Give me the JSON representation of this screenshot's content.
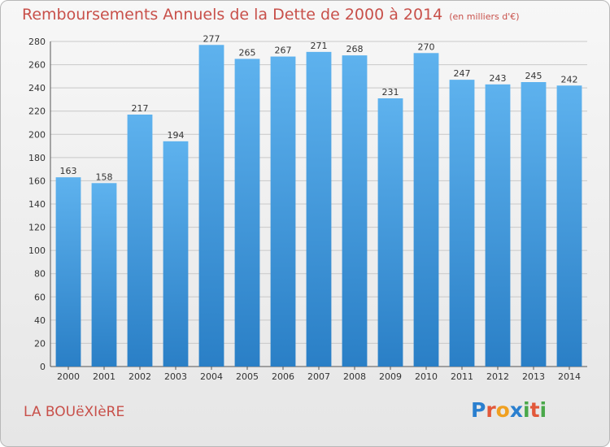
{
  "header": {
    "title": "Remboursements Annuels de la Dette de 2000 à 2014",
    "unit": "(en milliers d'€)"
  },
  "footer": {
    "town": "LA BOUëXIèRE",
    "logo_letters": [
      "P",
      "r",
      "o",
      "x",
      "i",
      "t",
      "i"
    ],
    "logo_colors": [
      "#2a7fcf",
      "#e2583a",
      "#f0a020",
      "#2a7fcf",
      "#4aa84a",
      "#e2583a",
      "#4aa84a"
    ]
  },
  "colors": {
    "bar_light": "#5eb2ee",
    "bar_dark": "#2a7fc6",
    "grid": "#c8c8c8",
    "title": "#c8504a"
  },
  "chart_data": {
    "type": "bar",
    "title": "Remboursements Annuels de la Dette de 2000 à 2014",
    "subtitle": "(en milliers d'€)",
    "categories": [
      "2000",
      "2001",
      "2002",
      "2003",
      "2004",
      "2005",
      "2006",
      "2007",
      "2008",
      "2009",
      "2010",
      "2011",
      "2012",
      "2013",
      "2014"
    ],
    "values": [
      163,
      158,
      217,
      194,
      277,
      265,
      267,
      271,
      268,
      231,
      270,
      247,
      243,
      245,
      242
    ],
    "ylim": [
      0,
      280
    ],
    "yticks": [
      0,
      20,
      40,
      60,
      80,
      100,
      120,
      140,
      160,
      180,
      200,
      220,
      240,
      260,
      280
    ],
    "grid": true,
    "legend": "none"
  }
}
